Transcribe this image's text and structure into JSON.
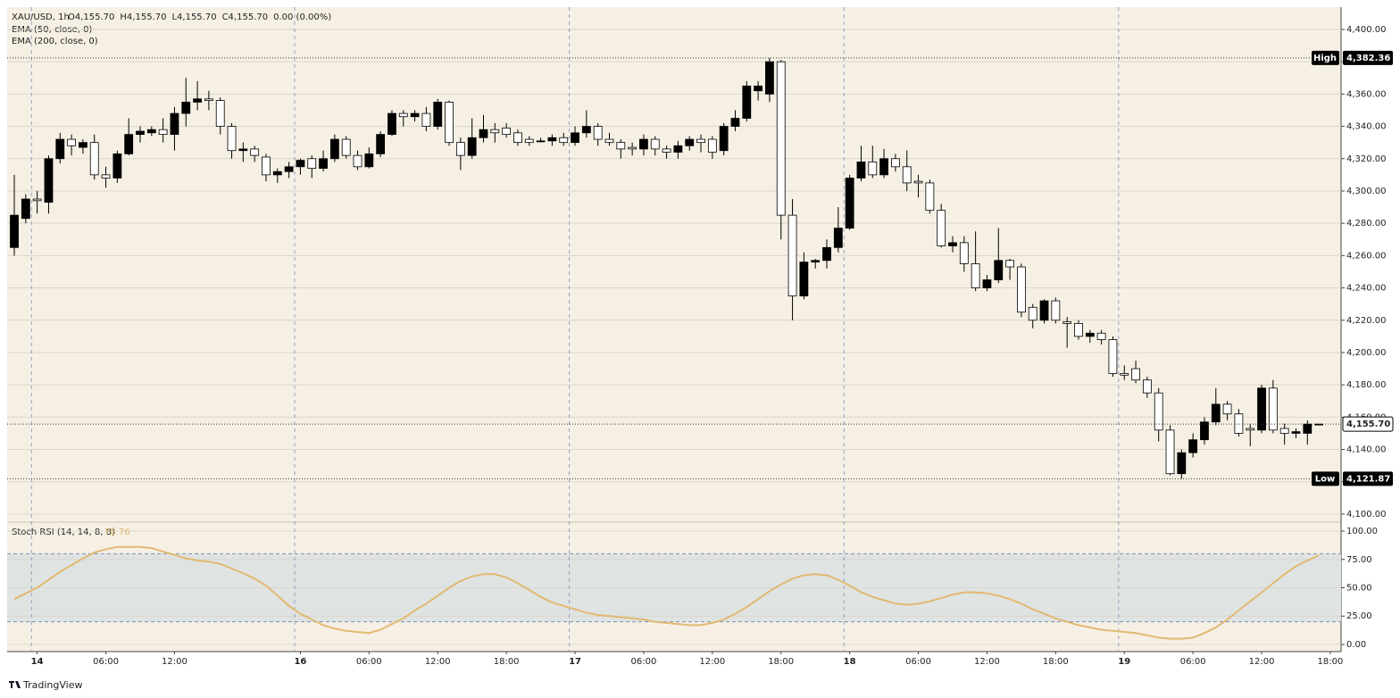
{
  "chart_data": [
    {
      "type": "candlestick",
      "symbol": "XAU/USD, 1h",
      "ohlc_readout": [
        "O4,155.70",
        "H4,155.70",
        "L4,155.70",
        "C4,155.70",
        "0.00 (0.00%)"
      ],
      "indicators": [
        "EMA (50, close, 0)",
        "EMA (200, close, 0)"
      ],
      "up_color": "#000000",
      "down_color": "#ffffff",
      "open": [
        4265,
        4283,
        4295,
        4293,
        4320,
        4332,
        4327,
        4330,
        4310,
        4308,
        4323,
        4335,
        4336,
        4338,
        4335,
        4348,
        4355,
        4357,
        4356,
        4340,
        4325,
        4326,
        4321,
        4310,
        4312,
        4315,
        4320,
        4314,
        4320,
        4332,
        4322,
        4315,
        4323,
        4335,
        4348,
        4346,
        4348,
        4340,
        4355,
        4330,
        4322,
        4333,
        4338,
        4339,
        4336,
        4332,
        4331,
        4331,
        4333,
        4330,
        4336,
        4340,
        4332,
        4330,
        4327,
        4326,
        4332,
        4326,
        4324,
        4328,
        4332,
        4332,
        4325,
        4340,
        4345,
        4362,
        4360,
        4380,
        4285,
        4235,
        4256,
        4257,
        4265,
        4277,
        4308,
        4318,
        4310,
        4320,
        4315,
        4306,
        4305,
        4288,
        4266,
        4268,
        4255,
        4240,
        4245,
        4257,
        4253,
        4228,
        4220,
        4232,
        4219,
        4218,
        4210,
        4212,
        4208,
        4187,
        4190,
        4183,
        4175,
        4152,
        4125,
        4138,
        4146,
        4157,
        4168,
        4162,
        4153,
        4152,
        4178,
        4153,
        4150,
        4150,
        4155.7
      ],
      "high": [
        4310,
        4298,
        4300,
        4322,
        4336,
        4335,
        4332,
        4335,
        4315,
        4325,
        4345,
        4340,
        4340,
        4345,
        4352,
        4370,
        4368,
        4362,
        4358,
        4342,
        4330,
        4328,
        4323,
        4314,
        4318,
        4320,
        4322,
        4325,
        4335,
        4334,
        4325,
        4327,
        4337,
        4350,
        4350,
        4350,
        4352,
        4357,
        4356,
        4333,
        4345,
        4347,
        4342,
        4342,
        4338,
        4334,
        4333,
        4335,
        4336,
        4340,
        4350,
        4342,
        4336,
        4332,
        4330,
        4335,
        4334,
        4328,
        4331,
        4334,
        4335,
        4334,
        4342,
        4350,
        4368,
        4368,
        4382.36,
        4381,
        4295,
        4262,
        4258,
        4270,
        4290,
        4310,
        4328,
        4328,
        4326,
        4323,
        4325,
        4310,
        4307,
        4292,
        4272,
        4272,
        4275,
        4248,
        4277,
        4258,
        4255,
        4230,
        4233,
        4234,
        4222,
        4220,
        4214,
        4214,
        4210,
        4192,
        4195,
        4185,
        4178,
        4155,
        4140,
        4150,
        4160,
        4178,
        4170,
        4165,
        4156,
        4180,
        4183,
        4156,
        4153,
        4158,
        4155.7
      ],
      "low": [
        4260,
        4280,
        4286,
        4286,
        4317,
        4322,
        4323,
        4307,
        4302,
        4305,
        4322,
        4330,
        4334,
        4330,
        4325,
        4340,
        4350,
        4350,
        4335,
        4320,
        4318,
        4318,
        4306,
        4305,
        4308,
        4310,
        4308,
        4312,
        4318,
        4320,
        4313,
        4314,
        4321,
        4334,
        4340,
        4343,
        4337,
        4338,
        4328,
        4313,
        4320,
        4330,
        4330,
        4333,
        4328,
        4328,
        4330,
        4328,
        4328,
        4328,
        4333,
        4328,
        4328,
        4320,
        4322,
        4322,
        4322,
        4320,
        4320,
        4325,
        4324,
        4320,
        4322,
        4337,
        4343,
        4356,
        4355,
        4270,
        4220,
        4233,
        4252,
        4252,
        4262,
        4276,
        4306,
        4308,
        4308,
        4312,
        4300,
        4296,
        4286,
        4265,
        4262,
        4250,
        4238,
        4238,
        4243,
        4245,
        4222,
        4215,
        4218,
        4218,
        4203,
        4208,
        4206,
        4205,
        4185,
        4183,
        4181,
        4172,
        4145,
        4124,
        4121.87,
        4135,
        4143,
        4155,
        4158,
        4148,
        4142,
        4150,
        4150,
        4143,
        4147,
        4143,
        4155.7
      ],
      "close": [
        4285,
        4295,
        4294,
        4320,
        4332,
        4328,
        4330,
        4310,
        4308,
        4323,
        4335,
        4337,
        4338,
        4335,
        4348,
        4355,
        4357,
        4356,
        4340,
        4325,
        4326,
        4322,
        4310,
        4312,
        4315,
        4319,
        4314,
        4320,
        4332,
        4322,
        4315,
        4323,
        4335,
        4348,
        4346,
        4348,
        4340,
        4355,
        4330,
        4322,
        4333,
        4338,
        4336,
        4335,
        4330,
        4330,
        4331,
        4333,
        4330,
        4336,
        4340,
        4332,
        4330,
        4326,
        4326,
        4332,
        4326,
        4324,
        4328,
        4332,
        4330,
        4324,
        4340,
        4345,
        4365,
        4365,
        4380,
        4285,
        4235,
        4256,
        4257,
        4265,
        4277,
        4308,
        4318,
        4310,
        4320,
        4315,
        4305,
        4305,
        4288,
        4266,
        4268,
        4255,
        4240,
        4245,
        4257,
        4253,
        4225,
        4220,
        4232,
        4220,
        4218,
        4210,
        4212,
        4208,
        4187,
        4186,
        4183,
        4175,
        4152,
        4125,
        4138,
        4146,
        4157,
        4168,
        4162,
        4150,
        4152,
        4178,
        4152,
        4150,
        4151,
        4155.7,
        4155.7
      ],
      "last_price_label": "4,155.70",
      "markers": [
        {
          "label": "High",
          "value": 4382.36,
          "value_label": "4,382.36"
        },
        {
          "label": "Low",
          "value": 4121.87,
          "value_label": "4,121.87"
        }
      ],
      "ylim": [
        4096.1,
        4413.8
      ],
      "yticks": [
        {
          "value": 4100,
          "label": "4,100.00"
        },
        {
          "value": 4120,
          "label": "4,120.00"
        },
        {
          "value": 4140,
          "label": "4,140.00"
        },
        {
          "value": 4160,
          "label": "4,160.00"
        },
        {
          "value": 4180,
          "label": "4,180.00"
        },
        {
          "value": 4200,
          "label": "4,200.00"
        },
        {
          "value": 4220,
          "label": "4,220.00"
        },
        {
          "value": 4240,
          "label": "4,240.00"
        },
        {
          "value": 4260,
          "label": "4,260.00"
        },
        {
          "value": 4280,
          "label": "4,280.00"
        },
        {
          "value": 4300,
          "label": "4,300.00"
        },
        {
          "value": 4320,
          "label": "4,320.00"
        },
        {
          "value": 4340,
          "label": "4,340.00"
        },
        {
          "value": 4360,
          "label": "4,360.00"
        },
        {
          "value": 4380,
          "label": "4,380.00"
        },
        {
          "value": 4400,
          "label": "4,400.00"
        }
      ],
      "xlim": [
        -0.625,
        115.94
      ],
      "xticks": [
        {
          "value": 2,
          "label": "14"
        },
        {
          "value": 8,
          "label": "06:00"
        },
        {
          "value": 14,
          "label": "12:00"
        },
        {
          "value": 25,
          "label": "16"
        },
        {
          "value": 31,
          "label": "06:00"
        },
        {
          "value": 37,
          "label": "12:00"
        },
        {
          "value": 43,
          "label": "18:00"
        },
        {
          "value": 49,
          "label": "17"
        },
        {
          "value": 55,
          "label": "06:00"
        },
        {
          "value": 61,
          "label": "12:00"
        },
        {
          "value": 67,
          "label": "18:00"
        },
        {
          "value": 73,
          "label": "18"
        },
        {
          "value": 79,
          "label": "06:00"
        },
        {
          "value": 85,
          "label": "12:00"
        },
        {
          "value": 91,
          "label": "18:00"
        },
        {
          "value": 97,
          "label": "19"
        },
        {
          "value": 103,
          "label": "06:00"
        },
        {
          "value": 109,
          "label": "12:00"
        },
        {
          "value": 115,
          "label": "18:00"
        }
      ],
      "grid": true
    },
    {
      "type": "line",
      "title": "Stoch RSI (14, 14, 8, 8)",
      "series": [
        {
          "color": "#e2b872",
          "values": [
            40,
            45,
            50,
            57,
            64,
            70,
            76,
            81,
            84,
            86,
            86,
            86,
            85,
            82,
            79,
            76,
            74,
            73,
            71,
            67,
            63,
            58,
            52,
            43,
            34,
            27,
            22,
            17,
            14,
            12,
            11,
            10,
            13,
            18,
            23,
            30,
            36,
            43,
            50,
            56,
            60,
            62,
            62,
            59,
            54,
            48,
            42,
            37,
            34,
            31,
            28,
            26,
            25,
            24,
            23,
            22,
            20,
            19,
            18,
            17,
            17,
            19,
            22,
            27,
            33,
            40,
            47,
            53,
            58,
            61,
            62,
            61,
            57,
            52,
            46,
            42,
            39,
            36,
            35,
            36,
            38,
            41,
            44,
            46,
            46,
            45,
            43,
            40,
            36,
            31,
            27,
            23,
            20,
            17,
            15,
            13,
            12,
            11,
            10,
            8,
            6,
            5,
            5,
            6,
            10,
            15,
            22,
            30,
            38,
            46,
            54,
            62,
            69,
            74,
            78.76
          ]
        }
      ],
      "bands": [
        20,
        80
      ],
      "ylim": [
        -6.3,
        106.3
      ],
      "yticks": [
        {
          "value": 0,
          "label": "0.00"
        },
        {
          "value": 25,
          "label": "25.00"
        },
        {
          "value": 50,
          "label": "50.00"
        },
        {
          "value": 75,
          "label": "75.00"
        },
        {
          "value": 100,
          "label": "100.00"
        }
      ]
    }
  ],
  "footer": "TradingView"
}
